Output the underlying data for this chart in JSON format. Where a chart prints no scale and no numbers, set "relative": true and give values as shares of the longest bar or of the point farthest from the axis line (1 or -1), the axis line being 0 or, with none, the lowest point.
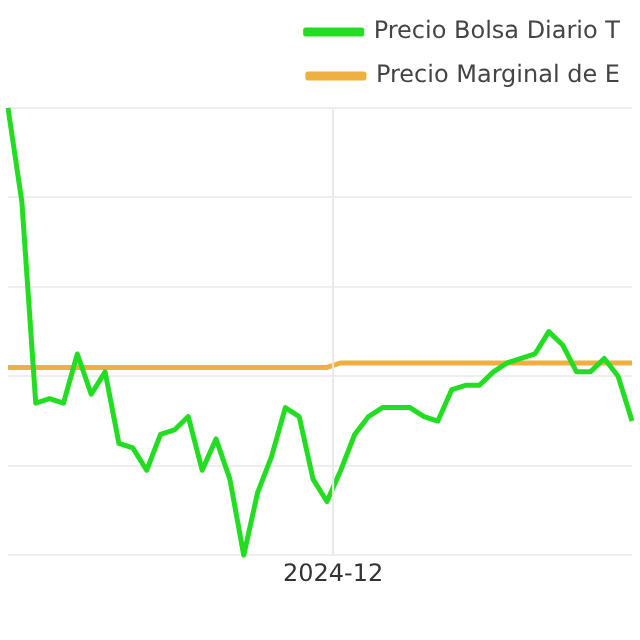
{
  "chart_data": {
    "type": "line",
    "relative": true,
    "grid": "y",
    "legend": "top right",
    "marker": "none",
    "categories": [
      null,
      null,
      null,
      null,
      null,
      null,
      null,
      null,
      null,
      null,
      null,
      null,
      null,
      null,
      null,
      null,
      null,
      null,
      null,
      null,
      null,
      null,
      null,
      null,
      null,
      null,
      null,
      null,
      null,
      null,
      null,
      null,
      null,
      null,
      null,
      null,
      null,
      null,
      null,
      null,
      null,
      null,
      null,
      null,
      null,
      null
    ],
    "annotations": [
      "2024-12"
    ],
    "series": [
      {
        "name": "Precio Bolsa Diario T",
        "color": "#22dd22",
        "values": [
          1.0,
          0.79,
          0.34,
          0.35,
          0.34,
          0.45,
          0.36,
          0.41,
          0.25,
          0.24,
          0.19,
          0.27,
          0.28,
          0.31,
          0.19,
          0.26,
          0.17,
          0,
          0.14,
          0.22,
          0.33,
          0.31,
          0.17,
          0.12,
          0.19,
          0.27,
          0.31,
          0.33,
          0.33,
          0.33,
          0.31,
          0.3,
          0.37,
          0.38,
          0.38,
          0.41,
          0.43,
          0.44,
          0.45,
          0.5,
          0.47,
          0.41,
          0.41,
          0.44,
          0.4,
          0.3
        ]
      },
      {
        "name": "Precio Marginal de E",
        "color": "#f0b040",
        "values": [
          0.42,
          0.42,
          0.42,
          0.42,
          0.42,
          0.42,
          0.42,
          0.42,
          0.42,
          0.42,
          0.42,
          0.42,
          0.42,
          0.42,
          0.42,
          0.42,
          0.42,
          0.42,
          0.42,
          0.42,
          0.42,
          0.42,
          0.42,
          0.42,
          0.43,
          0.43,
          0.43,
          0.43,
          0.43,
          0.43,
          0.43,
          0.43,
          0.43,
          0.43,
          0.43,
          0.43,
          0.43,
          0.43,
          0.43,
          0.43,
          0.43,
          0.43,
          0.43,
          0.43,
          0.43,
          0.43
        ]
      }
    ]
  }
}
